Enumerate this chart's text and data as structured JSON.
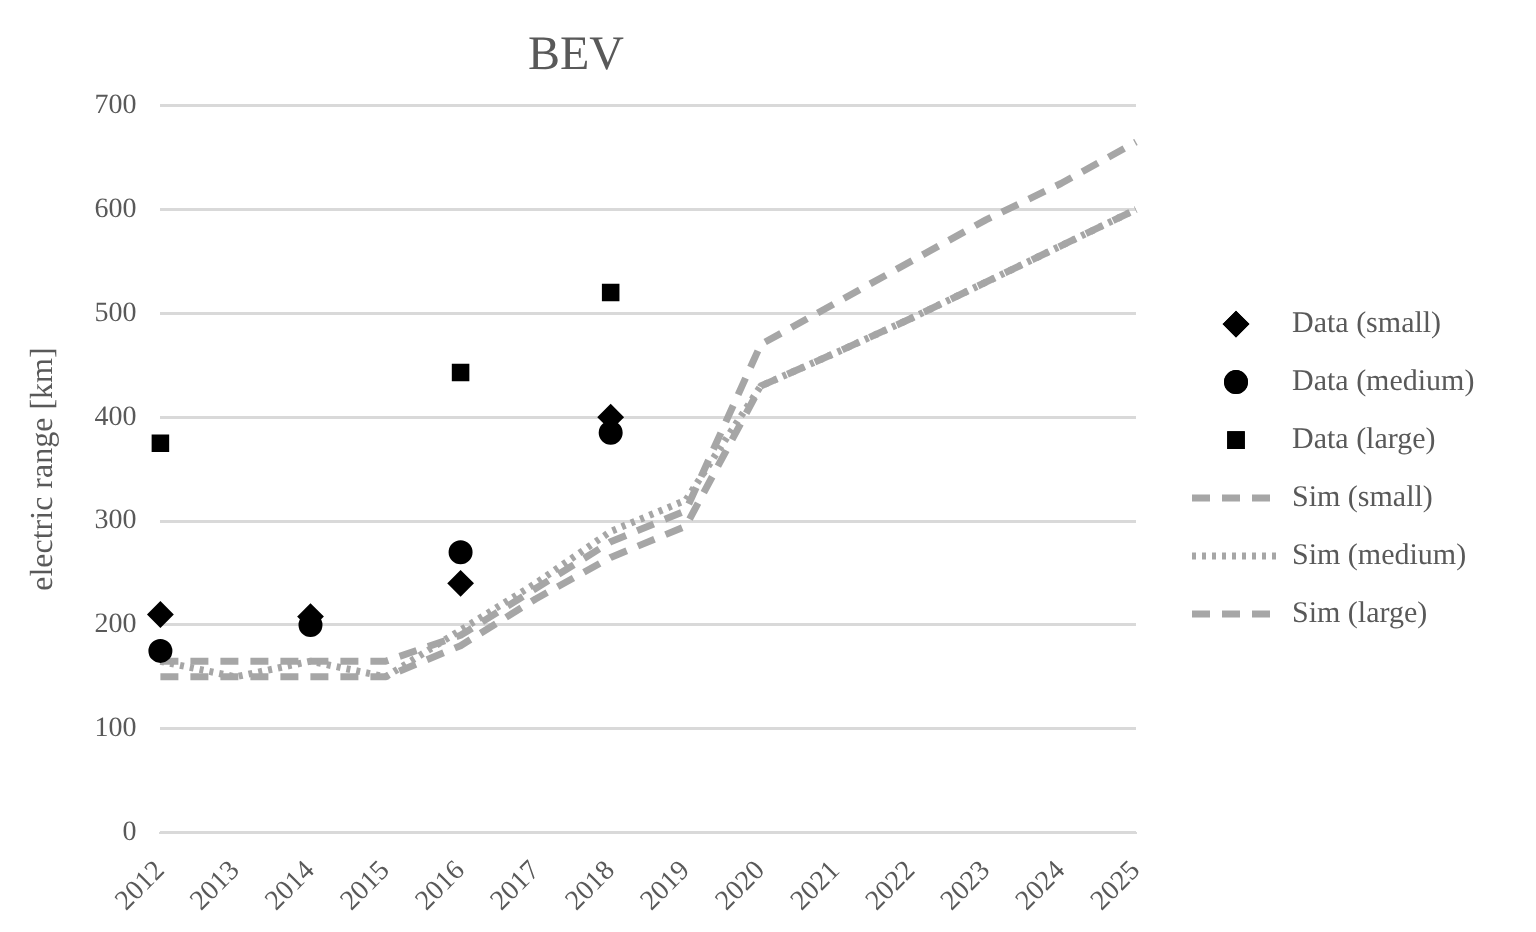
{
  "chart_data": {
    "type": "line",
    "title": "BEV",
    "ylabel": "electric range [km]",
    "categories": [
      "2012",
      "2013",
      "2014",
      "2015",
      "2016",
      "2017",
      "2018",
      "2019",
      "2020",
      "2021",
      "2022",
      "2023",
      "2024",
      "2025"
    ],
    "ylim": [
      0,
      700
    ],
    "yticks": [
      0,
      100,
      200,
      300,
      400,
      500,
      600,
      700
    ],
    "grid": "y",
    "legend": "right",
    "series": [
      {
        "name": "Data (small)",
        "type": "scatter",
        "marker": "diamond",
        "color": "#000000",
        "values": [
          210,
          null,
          208,
          null,
          240,
          null,
          400,
          null,
          null,
          null,
          null,
          null,
          null,
          null
        ]
      },
      {
        "name": "Data (medium)",
        "type": "scatter",
        "marker": "circle",
        "color": "#000000",
        "values": [
          175,
          null,
          200,
          null,
          270,
          null,
          385,
          null,
          null,
          null,
          null,
          null,
          null,
          null
        ]
      },
      {
        "name": "Data (large)",
        "type": "scatter",
        "marker": "square",
        "color": "#000000",
        "values": [
          375,
          null,
          null,
          null,
          443,
          null,
          520,
          null,
          null,
          null,
          null,
          null,
          null,
          null
        ]
      },
      {
        "name": "Sim (small)",
        "type": "line",
        "line_style": "dashed",
        "color": "#a6a6a6",
        "values": [
          150,
          150,
          150,
          150,
          180,
          225,
          265,
          295,
          430,
          462,
          495,
          530,
          565,
          600
        ]
      },
      {
        "name": "Sim (medium)",
        "type": "line",
        "line_style": "dotted",
        "color": "#a6a6a6",
        "values": [
          165,
          150,
          165,
          150,
          195,
          240,
          290,
          320,
          430,
          462,
          495,
          530,
          565,
          600
        ]
      },
      {
        "name": "Sim (large)",
        "type": "line",
        "line_style": "dashed",
        "color": "#a6a6a6",
        "values": [
          165,
          165,
          165,
          165,
          190,
          235,
          280,
          310,
          470,
          510,
          550,
          590,
          625,
          665
        ]
      }
    ]
  }
}
